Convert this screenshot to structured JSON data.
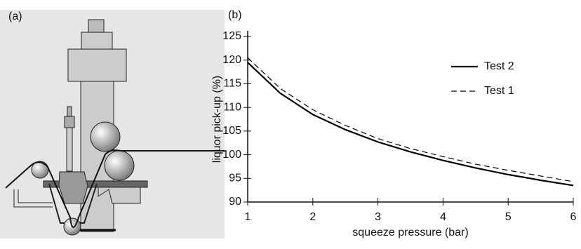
{
  "panel_labels": [
    "(a)",
    "(b)"
  ],
  "chart_data": {
    "type": "line",
    "xlabel": "squeeze pressure (bar)",
    "ylabel": "liquor pick-up (%)",
    "x": [
      1,
      1.5,
      2,
      2.5,
      3,
      3.5,
      4,
      4.5,
      5,
      5.5,
      6
    ],
    "series": [
      {
        "name": "Test 2",
        "color": "#000000",
        "style": "solid",
        "values": [
          119.5,
          113,
          108.5,
          105.3,
          102.7,
          100.6,
          98.8,
          97.2,
          95.8,
          94.6,
          93.5
        ]
      },
      {
        "name": "Test 1",
        "color": "#000000",
        "style": "dashed",
        "values": [
          120.5,
          114,
          109.5,
          106.2,
          103.4,
          101.3,
          99.6,
          98.0,
          96.7,
          95.5,
          94.3
        ]
      }
    ],
    "xlim": [
      1,
      6
    ],
    "xticks": [
      1,
      2,
      3,
      4,
      5,
      6
    ],
    "ylim": [
      90,
      125
    ],
    "yticks": [
      90,
      95,
      100,
      105,
      110,
      115,
      120,
      125
    ],
    "grid": false,
    "legend": "upper right"
  }
}
